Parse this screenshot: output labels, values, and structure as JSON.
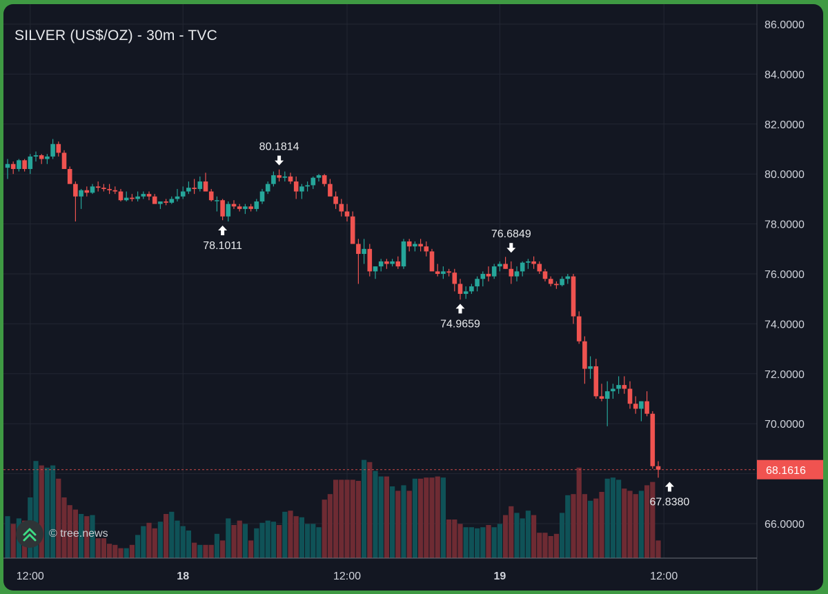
{
  "chart_data": {
    "type": "candlestick",
    "title": "SILVER (US$/OZ) - 30m - TVC",
    "y_axis": {
      "ylim": [
        64.6,
        86.6
      ],
      "tick_labels": [
        "86.0000",
        "84.0000",
        "82.0000",
        "80.0000",
        "78.0000",
        "76.0000",
        "74.0000",
        "72.0000",
        "70.0000",
        "68.0000",
        "66.0000"
      ],
      "tick_values": [
        86,
        84,
        82,
        80,
        78,
        76,
        74,
        72,
        70,
        68,
        66
      ]
    },
    "x_axis": {
      "tick_labels": [
        "12:00",
        "18",
        "12:00",
        "19",
        "12:00"
      ],
      "tick_candle_index": [
        4,
        31,
        60,
        87,
        116
      ],
      "bold": [
        false,
        true,
        false,
        true,
        false
      ]
    },
    "last_price": {
      "value": 68.1616,
      "label": "68.1616",
      "color": "#f05350"
    },
    "annotations": [
      {
        "label": "80.1814",
        "candle": 48,
        "value": 80.1814,
        "kind": "high"
      },
      {
        "label": "78.1011",
        "candle": 38,
        "value": 78.1011,
        "kind": "low"
      },
      {
        "label": "74.9659",
        "candle": 80,
        "value": 74.9659,
        "kind": "low"
      },
      {
        "label": "76.6849",
        "candle": 89,
        "value": 76.6849,
        "kind": "high"
      },
      {
        "label": "67.8380",
        "candle": 117,
        "value": 67.838,
        "kind": "low"
      }
    ],
    "colors": {
      "up": "#26a69a",
      "down": "#ef5350",
      "up_volume": "#0f5257",
      "down_volume": "#6e2b33"
    },
    "ohlc": [
      [
        80.25,
        80.6,
        79.8,
        80.4
      ],
      [
        80.4,
        80.5,
        80.0,
        80.2
      ],
      [
        80.2,
        80.6,
        80.1,
        80.55
      ],
      [
        80.55,
        80.6,
        80.1,
        80.2
      ],
      [
        80.2,
        80.8,
        80.0,
        80.7
      ],
      [
        80.7,
        80.9,
        80.5,
        80.75
      ],
      [
        80.75,
        80.8,
        80.4,
        80.6
      ],
      [
        80.6,
        80.8,
        80.4,
        80.7
      ],
      [
        80.7,
        81.4,
        80.6,
        81.2
      ],
      [
        81.2,
        81.3,
        80.7,
        80.85
      ],
      [
        80.85,
        80.95,
        80.3,
        80.2
      ],
      [
        80.2,
        80.3,
        79.7,
        79.6
      ],
      [
        79.6,
        79.7,
        78.1,
        79.1
      ],
      [
        79.1,
        79.4,
        78.6,
        79.35
      ],
      [
        79.35,
        79.5,
        79.1,
        79.25
      ],
      [
        79.25,
        79.6,
        79.2,
        79.5
      ],
      [
        79.5,
        79.7,
        79.3,
        79.45
      ],
      [
        79.45,
        79.6,
        79.3,
        79.4
      ],
      [
        79.4,
        79.6,
        79.2,
        79.35
      ],
      [
        79.35,
        79.5,
        79.2,
        79.3
      ],
      [
        79.3,
        79.4,
        78.9,
        78.95
      ],
      [
        78.95,
        79.3,
        78.9,
        79.05
      ],
      [
        79.05,
        79.2,
        78.9,
        79.0
      ],
      [
        79.0,
        79.3,
        78.9,
        79.1
      ],
      [
        79.1,
        79.3,
        79.0,
        79.2
      ],
      [
        79.2,
        79.3,
        78.95,
        79.1
      ],
      [
        79.1,
        79.2,
        78.9,
        78.8
      ],
      [
        78.8,
        78.9,
        78.6,
        78.9
      ],
      [
        78.9,
        79.0,
        78.75,
        78.85
      ],
      [
        78.85,
        79.1,
        78.8,
        79.0
      ],
      [
        79.0,
        79.4,
        78.9,
        79.1
      ],
      [
        79.1,
        79.5,
        79.0,
        79.3
      ],
      [
        79.3,
        79.7,
        79.2,
        79.45
      ],
      [
        79.45,
        79.8,
        79.2,
        79.4
      ],
      [
        79.4,
        79.9,
        79.3,
        79.7
      ],
      [
        79.7,
        80.05,
        79.4,
        79.3
      ],
      [
        79.3,
        79.4,
        78.9,
        78.95
      ],
      [
        78.95,
        79.1,
        78.5,
        78.95
      ],
      [
        78.95,
        79.0,
        78.15,
        78.3
      ],
      [
        78.3,
        78.9,
        78.1,
        78.8
      ],
      [
        78.8,
        78.95,
        78.6,
        78.7
      ],
      [
        78.7,
        78.8,
        78.5,
        78.6
      ],
      [
        78.6,
        78.8,
        78.4,
        78.7
      ],
      [
        78.7,
        78.8,
        78.5,
        78.6
      ],
      [
        78.6,
        79.0,
        78.5,
        78.9
      ],
      [
        78.9,
        79.4,
        78.8,
        79.3
      ],
      [
        79.3,
        79.7,
        79.2,
        79.6
      ],
      [
        79.6,
        80.1,
        79.5,
        79.95
      ],
      [
        79.95,
        80.18,
        79.7,
        79.85
      ],
      [
        79.85,
        80.1,
        79.7,
        79.9
      ],
      [
        79.9,
        80.05,
        79.6,
        79.7
      ],
      [
        79.7,
        79.9,
        79.0,
        79.3
      ],
      [
        79.3,
        79.6,
        79.0,
        79.5
      ],
      [
        79.5,
        79.7,
        79.3,
        79.55
      ],
      [
        79.55,
        79.9,
        79.4,
        79.85
      ],
      [
        79.85,
        80.0,
        79.7,
        79.95
      ],
      [
        79.95,
        80.0,
        79.5,
        79.6
      ],
      [
        79.6,
        79.8,
        79.1,
        79.1
      ],
      [
        79.1,
        79.3,
        78.6,
        78.8
      ],
      [
        78.8,
        79.0,
        78.3,
        78.5
      ],
      [
        78.5,
        78.8,
        78.1,
        78.3
      ],
      [
        78.3,
        78.5,
        77.4,
        77.2
      ],
      [
        77.2,
        77.4,
        75.6,
        76.8
      ],
      [
        76.8,
        77.4,
        76.4,
        77.0
      ],
      [
        77.0,
        77.2,
        75.9,
        76.1
      ],
      [
        76.1,
        76.3,
        75.8,
        76.3
      ],
      [
        76.3,
        76.6,
        76.1,
        76.5
      ],
      [
        76.5,
        76.6,
        76.2,
        76.4
      ],
      [
        76.4,
        76.6,
        76.3,
        76.5
      ],
      [
        76.5,
        76.7,
        76.2,
        76.3
      ],
      [
        76.3,
        77.4,
        76.2,
        77.3
      ],
      [
        77.3,
        77.4,
        76.9,
        77.1
      ],
      [
        77.1,
        77.3,
        76.9,
        77.2
      ],
      [
        77.2,
        77.4,
        76.9,
        77.1
      ],
      [
        77.1,
        77.3,
        76.7,
        76.9
      ],
      [
        76.9,
        77.0,
        76.2,
        76.1
      ],
      [
        76.1,
        76.4,
        75.9,
        76.0
      ],
      [
        76.0,
        76.3,
        75.8,
        76.1
      ],
      [
        76.1,
        76.2,
        75.9,
        76.05
      ],
      [
        76.05,
        76.2,
        75.3,
        75.6
      ],
      [
        75.6,
        75.8,
        74.97,
        75.2
      ],
      [
        75.2,
        75.5,
        75.0,
        75.3
      ],
      [
        75.3,
        75.6,
        75.2,
        75.5
      ],
      [
        75.5,
        75.9,
        75.3,
        75.8
      ],
      [
        75.8,
        76.1,
        75.5,
        76.0
      ],
      [
        76.0,
        76.3,
        75.7,
        75.9
      ],
      [
        75.9,
        76.4,
        75.8,
        76.3
      ],
      [
        76.3,
        76.5,
        76.1,
        76.4
      ],
      [
        76.4,
        76.68,
        76.2,
        76.2
      ],
      [
        76.2,
        76.5,
        75.6,
        75.9
      ],
      [
        75.9,
        76.3,
        75.7,
        76.1
      ],
      [
        76.1,
        76.5,
        75.9,
        76.45
      ],
      [
        76.45,
        76.6,
        76.2,
        76.5
      ],
      [
        76.5,
        76.7,
        76.2,
        76.4
      ],
      [
        76.4,
        76.5,
        76.0,
        76.1
      ],
      [
        76.1,
        76.2,
        75.7,
        75.8
      ],
      [
        75.8,
        75.9,
        75.5,
        75.6
      ],
      [
        75.6,
        75.7,
        75.4,
        75.55
      ],
      [
        75.55,
        75.9,
        75.5,
        75.8
      ],
      [
        75.8,
        76.0,
        75.6,
        75.9
      ],
      [
        75.9,
        76.0,
        74.0,
        74.3
      ],
      [
        74.3,
        74.5,
        73.2,
        73.3
      ],
      [
        73.3,
        73.5,
        71.6,
        72.2
      ],
      [
        72.2,
        72.7,
        71.8,
        72.3
      ],
      [
        72.3,
        72.6,
        71.0,
        71.1
      ],
      [
        71.1,
        71.6,
        70.9,
        71.0
      ],
      [
        71.0,
        71.7,
        69.9,
        71.3
      ],
      [
        71.3,
        71.6,
        71.0,
        71.4
      ],
      [
        71.4,
        71.9,
        71.2,
        71.55
      ],
      [
        71.55,
        71.9,
        71.2,
        71.4
      ],
      [
        71.4,
        71.7,
        70.6,
        70.8
      ],
      [
        70.8,
        71.1,
        70.4,
        70.6
      ],
      [
        70.6,
        70.9,
        70.1,
        70.9
      ],
      [
        70.9,
        71.3,
        70.3,
        70.4
      ],
      [
        70.4,
        70.5,
        68.2,
        68.3
      ],
      [
        68.3,
        68.5,
        67.84,
        68.16
      ]
    ],
    "volume": [
      0.38,
      0.31,
      0.36,
      0.34,
      0.55,
      0.88,
      0.84,
      0.82,
      0.84,
      0.72,
      0.55,
      0.48,
      0.44,
      0.4,
      0.38,
      0.39,
      0.18,
      0.18,
      0.13,
      0.12,
      0.09,
      0.09,
      0.12,
      0.21,
      0.29,
      0.32,
      0.27,
      0.33,
      0.4,
      0.42,
      0.34,
      0.29,
      0.25,
      0.14,
      0.12,
      0.12,
      0.12,
      0.22,
      0.16,
      0.36,
      0.3,
      0.34,
      0.31,
      0.16,
      0.27,
      0.32,
      0.34,
      0.33,
      0.3,
      0.42,
      0.43,
      0.38,
      0.37,
      0.31,
      0.31,
      0.28,
      0.53,
      0.58,
      0.71,
      0.71,
      0.71,
      0.71,
      0.7,
      0.89,
      0.87,
      0.79,
      0.74,
      0.74,
      0.65,
      0.61,
      0.66,
      0.61,
      0.72,
      0.72,
      0.73,
      0.73,
      0.74,
      0.73,
      0.35,
      0.35,
      0.31,
      0.28,
      0.28,
      0.27,
      0.28,
      0.3,
      0.28,
      0.31,
      0.39,
      0.47,
      0.41,
      0.36,
      0.43,
      0.39,
      0.23,
      0.23,
      0.2,
      0.22,
      0.41,
      0.57,
      0.58,
      0.82,
      0.58,
      0.52,
      0.54,
      0.6,
      0.72,
      0.73,
      0.71,
      0.63,
      0.61,
      0.58,
      0.61,
      0.66,
      0.69,
      0.16
    ]
  }
}
